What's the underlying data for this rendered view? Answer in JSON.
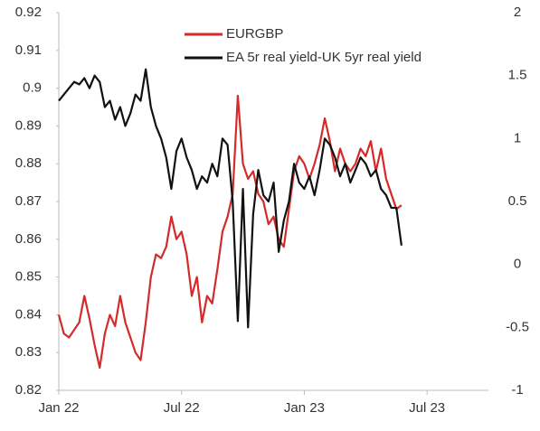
{
  "chart_data": {
    "type": "line",
    "x": [
      0,
      0.25,
      0.5,
      0.75,
      1,
      1.25,
      1.5,
      1.75,
      2,
      2.25,
      2.5,
      2.75,
      3,
      3.25,
      3.5,
      3.75,
      4,
      4.25,
      4.5,
      4.75,
      5,
      5.25,
      5.5,
      5.75,
      6,
      6.25,
      6.5,
      6.75,
      7,
      7.25,
      7.5,
      7.75,
      8,
      8.25,
      8.5,
      8.75,
      9,
      9.25,
      9.5,
      9.75,
      10,
      10.25,
      10.5,
      10.75,
      11,
      11.25,
      11.5,
      11.75,
      12,
      12.25,
      12.5,
      12.75,
      13,
      13.25,
      13.5,
      13.75,
      14,
      14.25,
      14.5,
      14.75,
      15,
      15.25,
      15.5,
      15.75,
      16,
      16.25,
      16.5,
      16.75
    ],
    "xlim": [
      0,
      21
    ],
    "xticks": [
      {
        "value": 0,
        "label": "Jan 22"
      },
      {
        "value": 6,
        "label": "Jul 22"
      },
      {
        "value": 12,
        "label": "Jan 23"
      },
      {
        "value": 18,
        "label": "Jul 23"
      }
    ],
    "ylim": [
      0.82,
      0.92
    ],
    "yticks": [
      0.82,
      0.83,
      0.84,
      0.85,
      0.86,
      0.87,
      0.88,
      0.89,
      0.9,
      0.91,
      0.92
    ],
    "y2lim": [
      -1,
      2
    ],
    "y2ticks": [
      -1,
      -0.5,
      0,
      0.5,
      1,
      1.5,
      2
    ],
    "grid": false,
    "series": [
      {
        "name": "EURGBP",
        "color": "#d42a2a",
        "values": [
          0.84,
          0.835,
          0.834,
          0.836,
          0.838,
          0.845,
          0.839,
          0.832,
          0.826,
          0.835,
          0.84,
          0.837,
          0.845,
          0.838,
          0.834,
          0.83,
          0.828,
          0.838,
          0.85,
          0.856,
          0.855,
          0.858,
          0.866,
          0.86,
          0.862,
          0.856,
          0.845,
          0.85,
          0.838,
          0.845,
          0.843,
          0.852,
          0.862,
          0.866,
          0.872,
          0.898,
          0.88,
          0.876,
          0.878,
          0.872,
          0.87,
          0.864,
          0.866,
          0.86,
          0.858,
          0.868,
          0.878,
          0.882,
          0.88,
          0.876,
          0.88,
          0.885,
          0.892,
          0.886,
          0.878,
          0.884,
          0.88,
          0.878,
          0.88,
          0.884,
          0.882,
          0.886,
          0.878,
          0.884,
          0.876,
          0.872,
          0.868,
          0.869
        ]
      },
      {
        "name": "EA 5r real yield-UK 5yr real yield",
        "color": "#111111",
        "axis": "y2",
        "values": [
          1.3,
          1.35,
          1.4,
          1.45,
          1.43,
          1.48,
          1.4,
          1.5,
          1.45,
          1.25,
          1.3,
          1.15,
          1.25,
          1.1,
          1.2,
          1.35,
          1.3,
          1.55,
          1.25,
          1.1,
          1.0,
          0.85,
          0.6,
          0.9,
          1.0,
          0.85,
          0.75,
          0.6,
          0.7,
          0.65,
          0.8,
          0.7,
          1.0,
          0.95,
          0.5,
          -0.45,
          0.6,
          -0.5,
          0.4,
          0.75,
          0.55,
          0.5,
          0.65,
          0.1,
          0.35,
          0.5,
          0.8,
          0.65,
          0.6,
          0.7,
          0.55,
          0.75,
          1.0,
          0.95,
          0.85,
          0.7,
          0.8,
          0.65,
          0.75,
          0.85,
          0.8,
          0.7,
          0.75,
          0.6,
          0.55,
          0.45,
          0.45,
          0.15
        ]
      }
    ]
  }
}
